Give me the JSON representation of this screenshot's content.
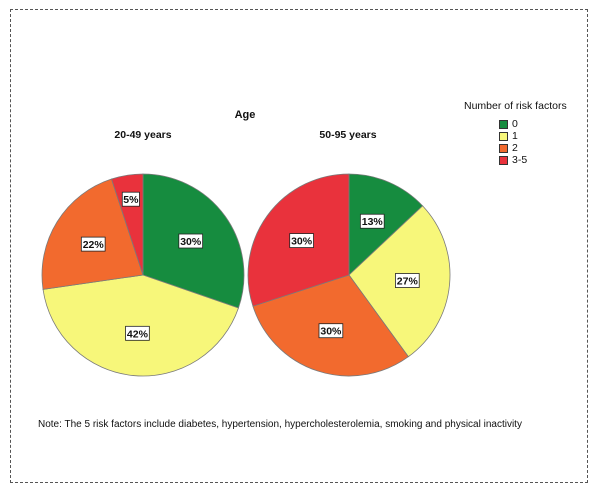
{
  "note": "Note: The 5 risk factors include diabetes, hypertension, hypercholesterolemia, smoking and physical inactivity",
  "chart_data": {
    "type": "pie",
    "title": "Age",
    "legend": {
      "title": "Number of risk factors",
      "position": "top-right",
      "entries": [
        "0",
        "1",
        "2",
        "3-5"
      ],
      "colors": [
        "#168c3f",
        "#f7f77a",
        "#f26a2e",
        "#e9323c"
      ]
    },
    "panels": [
      {
        "title": "20-49 years",
        "slices": [
          {
            "label": "0",
            "value": 30,
            "text": "30%"
          },
          {
            "label": "1",
            "value": 42,
            "text": "42%"
          },
          {
            "label": "2",
            "value": 22,
            "text": "22%"
          },
          {
            "label": "3-5",
            "value": 5,
            "text": "5%"
          }
        ]
      },
      {
        "title": "50-95 years",
        "slices": [
          {
            "label": "0",
            "value": 13,
            "text": "13%"
          },
          {
            "label": "1",
            "value": 27,
            "text": "27%"
          },
          {
            "label": "2",
            "value": 30,
            "text": "30%"
          },
          {
            "label": "3-5",
            "value": 30,
            "text": "30%"
          }
        ]
      }
    ]
  }
}
